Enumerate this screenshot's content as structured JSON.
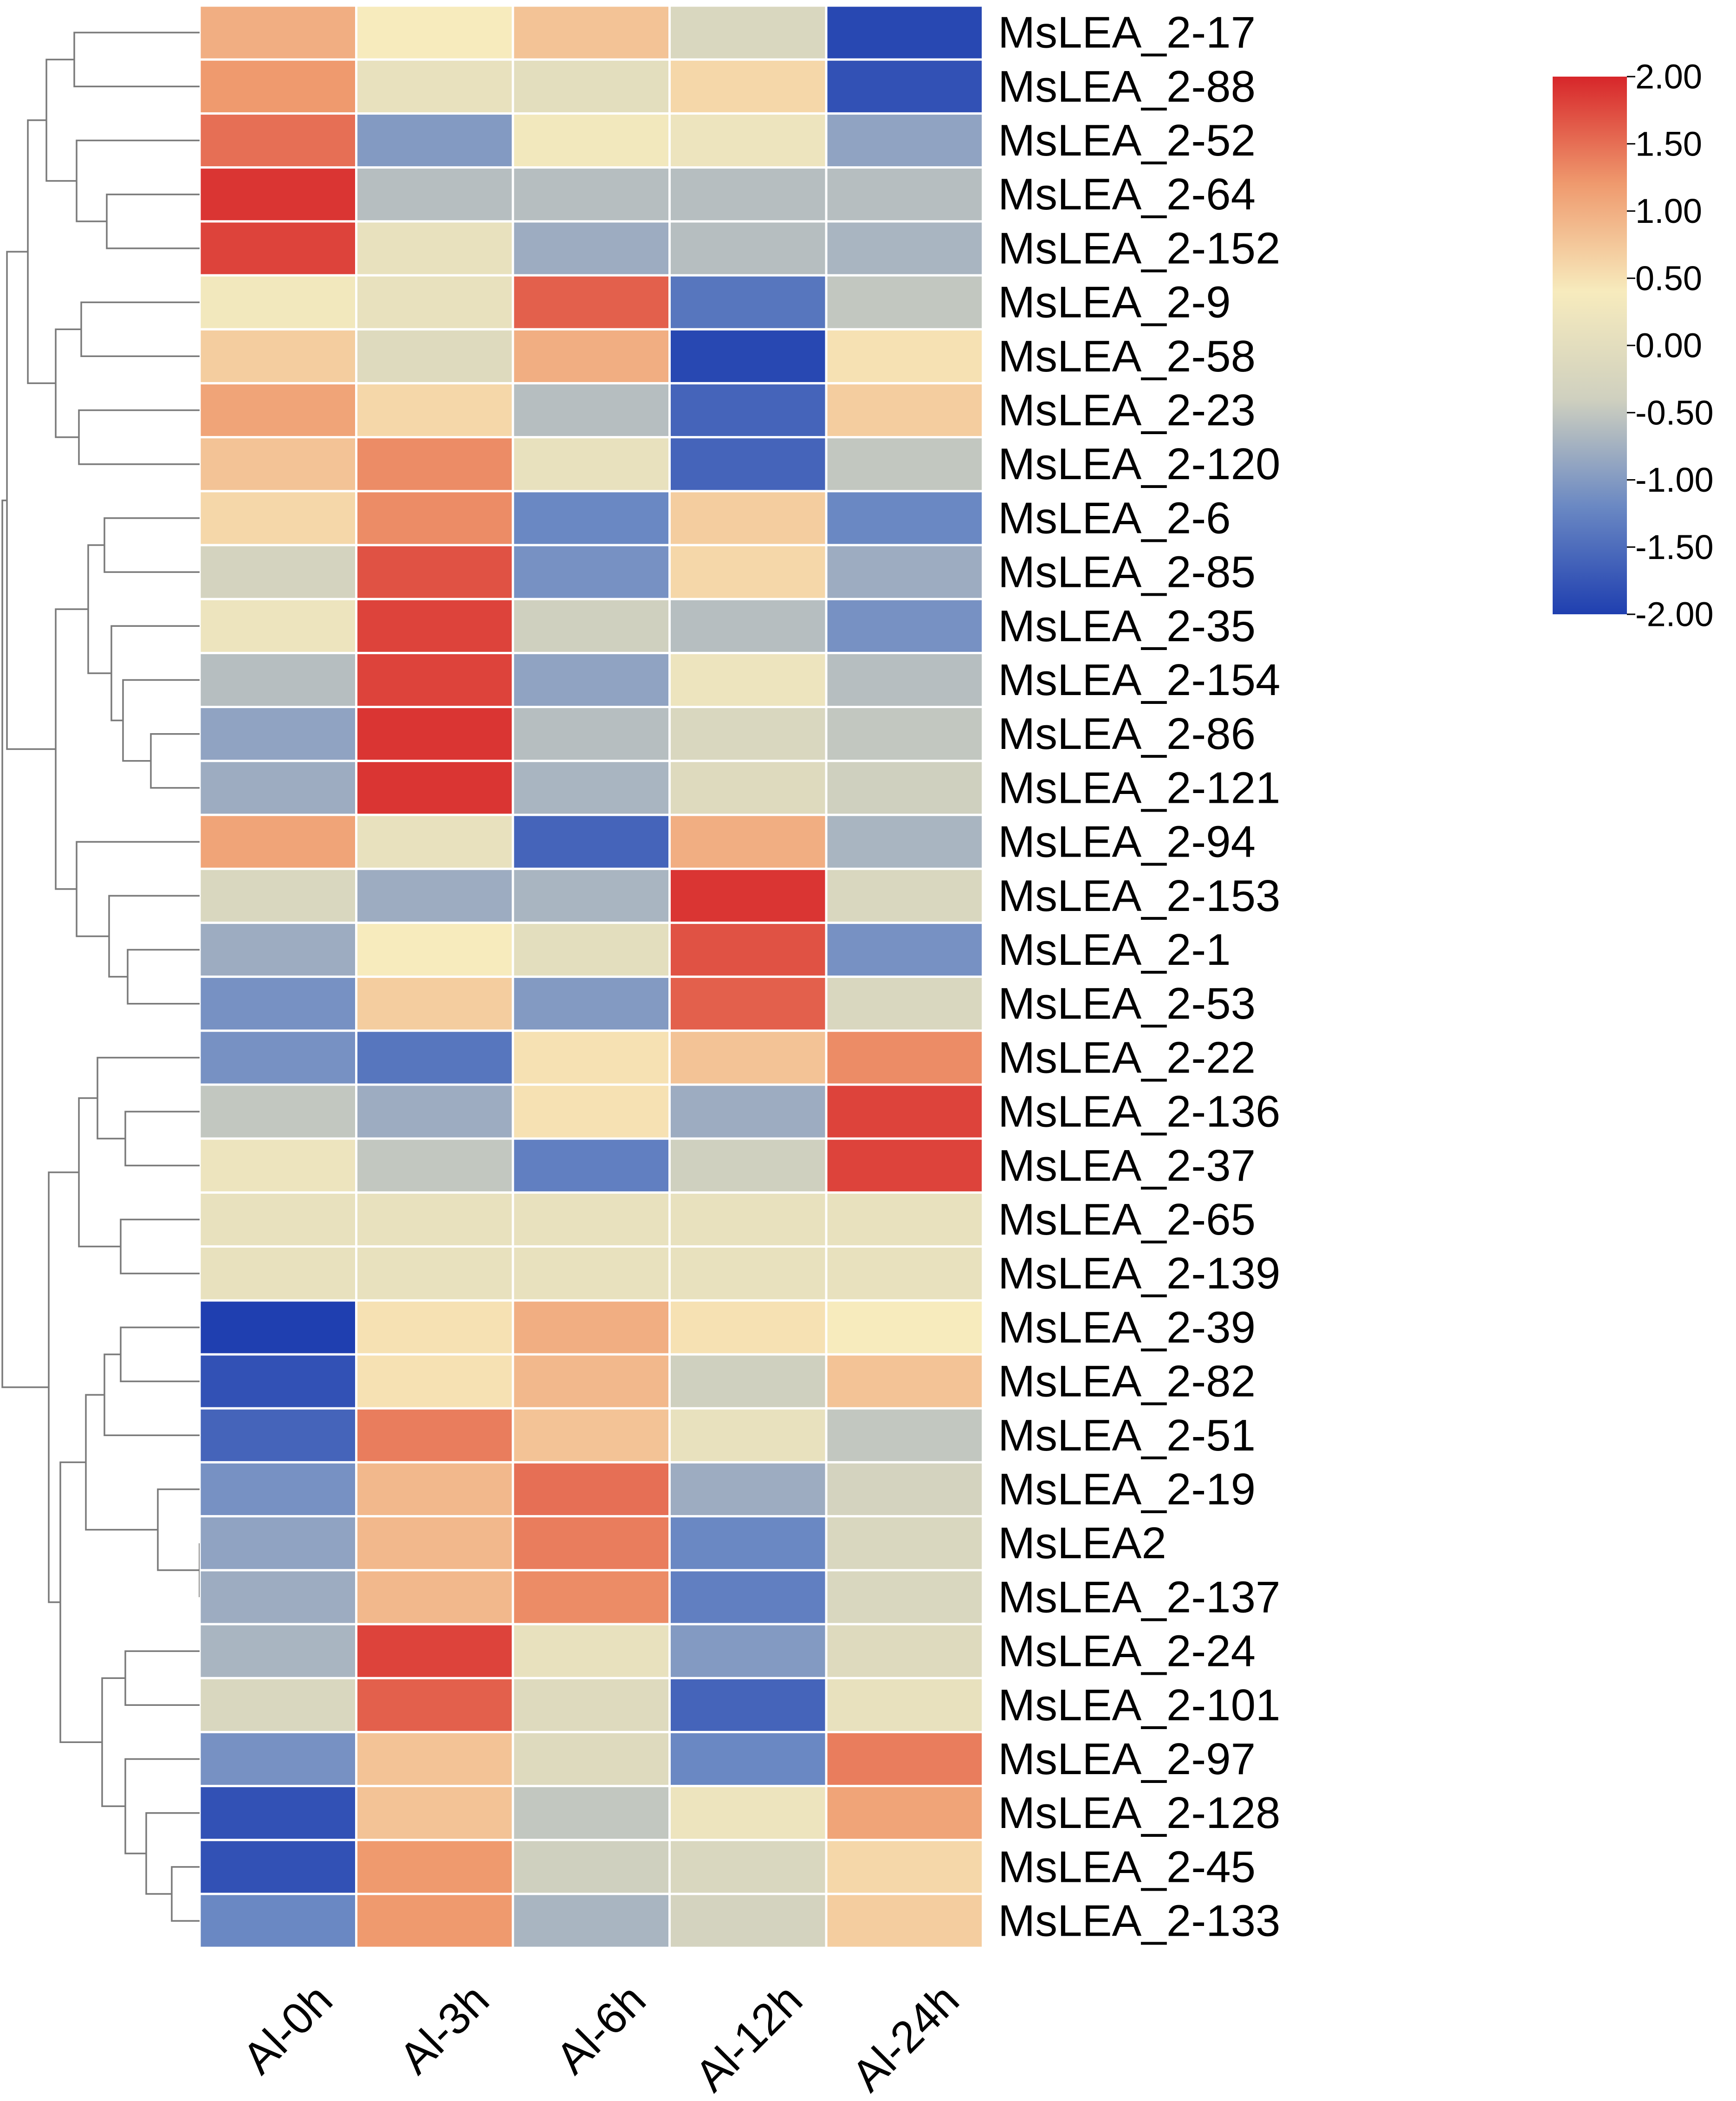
{
  "chart_data": {
    "type": "heatmap",
    "title": "",
    "columns": [
      "Al-0h",
      "Al-3h",
      "Al-6h",
      "Al-12h",
      "Al-24h"
    ],
    "rows": [
      "MsLEA_2-17",
      "MsLEA_2-88",
      "MsLEA_2-52",
      "MsLEA_2-64",
      "MsLEA_2-152",
      "MsLEA_2-9",
      "MsLEA_2-58",
      "MsLEA_2-23",
      "MsLEA_2-120",
      "MsLEA_2-6",
      "MsLEA_2-85",
      "MsLEA_2-35",
      "MsLEA_2-154",
      "MsLEA_2-86",
      "MsLEA_2-121",
      "MsLEA_2-94",
      "MsLEA_2-153",
      "MsLEA_2-1",
      "MsLEA_2-53",
      "MsLEA_2-22",
      "MsLEA_2-136",
      "MsLEA_2-37",
      "MsLEA_2-65",
      "MsLEA_2-139",
      "MsLEA_2-39",
      "MsLEA_2-82",
      "MsLEA_2-51",
      "MsLEA_2-19",
      "MsLEA2",
      "MsLEA_2-137",
      "MsLEA_2-24",
      "MsLEA_2-101",
      "MsLEA_2-97",
      "MsLEA_2-128",
      "MsLEA_2-45",
      "MsLEA_2-133"
    ],
    "values": [
      [
        1.0,
        0.4,
        0.8,
        -0.2,
        -1.9
      ],
      [
        1.2,
        0.1,
        0.0,
        0.6,
        -1.8
      ],
      [
        1.5,
        -1.0,
        0.3,
        0.2,
        -0.9
      ],
      [
        1.9,
        -0.6,
        -0.6,
        -0.6,
        -0.6
      ],
      [
        1.8,
        0.1,
        -0.8,
        -0.6,
        -0.7
      ],
      [
        0.3,
        0.1,
        1.6,
        -1.4,
        -0.5
      ],
      [
        0.7,
        -0.1,
        1.0,
        -1.9,
        0.5
      ],
      [
        1.1,
        0.6,
        -0.6,
        -1.6,
        0.7
      ],
      [
        0.8,
        1.3,
        0.1,
        -1.6,
        -0.5
      ],
      [
        0.6,
        1.3,
        -1.2,
        0.7,
        -1.2
      ],
      [
        -0.3,
        1.7,
        -1.1,
        0.6,
        -0.8
      ],
      [
        0.2,
        1.8,
        -0.4,
        -0.6,
        -1.1
      ],
      [
        -0.6,
        1.8,
        -0.9,
        0.2,
        -0.6
      ],
      [
        -0.9,
        1.9,
        -0.6,
        -0.2,
        -0.5
      ],
      [
        -0.8,
        1.9,
        -0.7,
        -0.1,
        -0.4
      ],
      [
        1.1,
        0.1,
        -1.6,
        1.0,
        -0.7
      ],
      [
        -0.2,
        -0.8,
        -0.7,
        1.9,
        -0.2
      ],
      [
        -0.8,
        0.4,
        0.0,
        1.7,
        -1.1
      ],
      [
        -1.1,
        0.7,
        -1.0,
        1.6,
        -0.2
      ],
      [
        -1.1,
        -1.4,
        0.5,
        0.8,
        1.3
      ],
      [
        -0.5,
        -0.8,
        0.5,
        -0.8,
        1.8
      ],
      [
        0.2,
        -0.5,
        -1.3,
        -0.4,
        1.8
      ],
      [
        0.1,
        0.1,
        0.1,
        0.1,
        0.1
      ],
      [
        0.1,
        0.1,
        0.1,
        0.1,
        0.1
      ],
      [
        -2.0,
        0.5,
        1.0,
        0.5,
        0.4
      ],
      [
        -1.8,
        0.5,
        0.9,
        -0.4,
        0.8
      ],
      [
        -1.6,
        1.4,
        0.8,
        0.1,
        -0.5
      ],
      [
        -1.1,
        0.9,
        1.5,
        -0.8,
        -0.3
      ],
      [
        -0.9,
        0.9,
        1.4,
        -1.2,
        -0.2
      ],
      [
        -0.8,
        0.9,
        1.3,
        -1.3,
        -0.2
      ],
      [
        -0.7,
        1.8,
        0.1,
        -1.0,
        -0.1
      ],
      [
        -0.2,
        1.6,
        -0.1,
        -1.6,
        0.1
      ],
      [
        -1.1,
        0.8,
        -0.1,
        -1.2,
        1.4
      ],
      [
        -1.8,
        0.8,
        -0.5,
        0.2,
        1.1
      ],
      [
        -1.8,
        1.2,
        -0.4,
        -0.2,
        0.6
      ],
      [
        -1.2,
        1.2,
        -0.7,
        -0.3,
        0.7
      ]
    ],
    "colorbar": {
      "min": -2.0,
      "max": 2.0,
      "tick_labels": [
        "2.00",
        "1.50",
        "1.00",
        "0.50",
        "0.00",
        "-0.50",
        "-1.00",
        "-1.50",
        "-2.00"
      ],
      "colors": [
        "#1f3fb0",
        "#6a88c3",
        "#cfd0bf",
        "#f7ebbd",
        "#ef9a6e",
        "#d7262a"
      ]
    },
    "dendrogram": {
      "side": "left",
      "note": "hierarchical clustering of rows"
    }
  }
}
